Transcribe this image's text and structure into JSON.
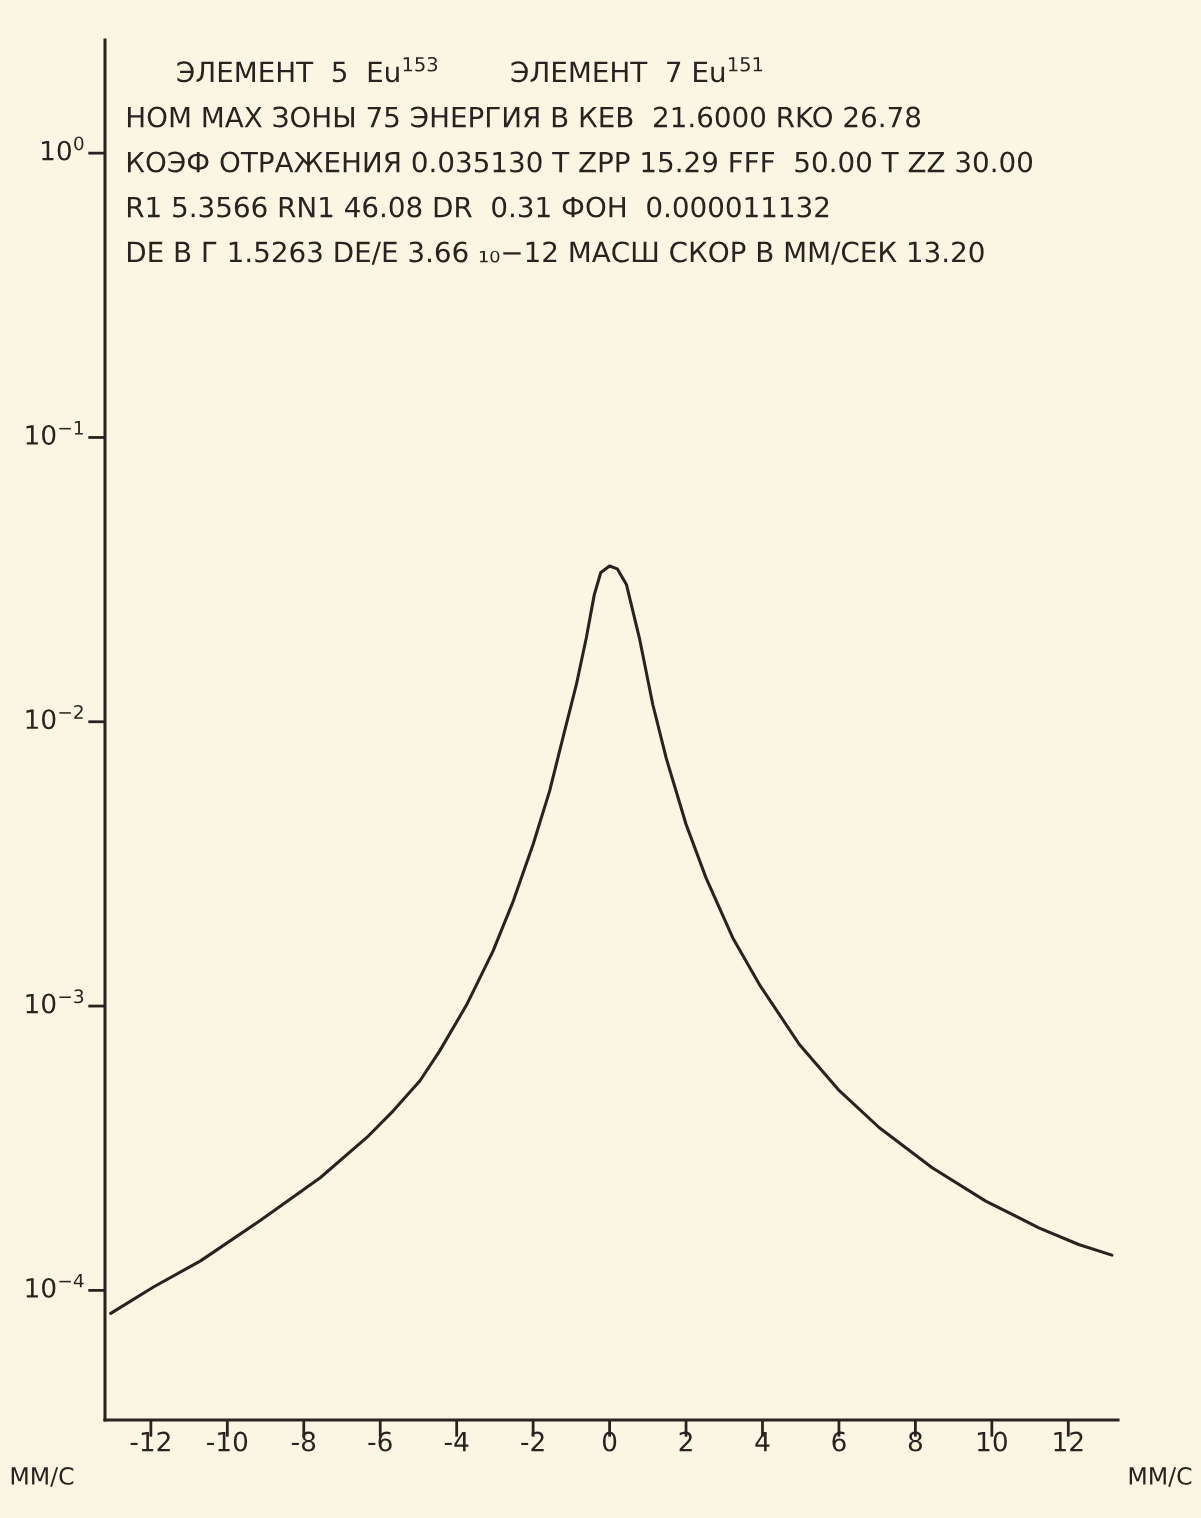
{
  "chart_data": {
    "type": "line",
    "title": "ЭЛЕМЕНТ  5  Eu$^{153}$        ЭЛЕМЕНТ  7 Eu$^{151}$",
    "annotations": [
      "НОМ МАХ ЗОНЫ 75 ЭНЕРГИЯ В КЕВ  21.6000 RKO 26.78",
      "КОЭФ ОТРАЖЕНИЯ 0.035130 T ZPP 15.29 FFF  50.00 T ZZ 30.00",
      "R1 5.3566 RN1 46.08 DR  0.31 ФОН  0.000011132",
      "DE В Г 1.5263 DE/E 3.66 ₁₀−12 МАСШ СКОР В ММ/СЕК 13.20",
      "ММ/С"
    ],
    "xlabel": "ММ/С",
    "x": [
      -13.05,
      -11.92,
      -10.7,
      -9.14,
      -7.57,
      -6.35,
      -5.66,
      -4.96,
      -4.44,
      -3.74,
      -3.05,
      -2.52,
      -2.0,
      -1.57,
      -1.22,
      -0.87,
      -0.61,
      -0.4,
      -0.23,
      0.0,
      0.2,
      0.44,
      0.78,
      1.13,
      1.48,
      2.0,
      2.52,
      3.22,
      3.92,
      4.96,
      6.01,
      7.05,
      8.44,
      9.84,
      11.23,
      12.27,
      13.14
    ],
    "values": [
      8.3e-05,
      0.000103,
      0.000127,
      0.000176,
      0.000249,
      0.000345,
      0.000428,
      0.000546,
      0.000697,
      0.00101,
      0.00156,
      0.00234,
      0.00371,
      0.0057,
      0.00879,
      0.0135,
      0.0197,
      0.028,
      0.0335,
      0.0353,
      0.0345,
      0.0304,
      0.0197,
      0.0115,
      0.00746,
      0.00436,
      0.00283,
      0.00174,
      0.00119,
      0.000734,
      0.000504,
      0.000374,
      0.00027,
      0.000206,
      0.000166,
      0.000145,
      0.000133
    ],
    "color": "#2b2220",
    "log": "y",
    "xlim": [
      -13.2,
      13.3
    ],
    "ylim": [
      3.5e-05,
      2.5
    ],
    "xticks": [
      -12,
      -10,
      -8,
      -6,
      -4,
      -2,
      0,
      2,
      4,
      6,
      8,
      10,
      12
    ],
    "yticks": [
      {
        "value": 1,
        "label": "10$^{0}$"
      },
      {
        "value": 0.1,
        "label": "10$^{−1}$"
      },
      {
        "value": 0.01,
        "label": "10$^{−2}$"
      },
      {
        "value": 0.001,
        "label": "10$^{−3}$"
      },
      {
        "value": 0.0001,
        "label": "10$^{−4}$"
      }
    ],
    "grid": false,
    "legend": false
  }
}
